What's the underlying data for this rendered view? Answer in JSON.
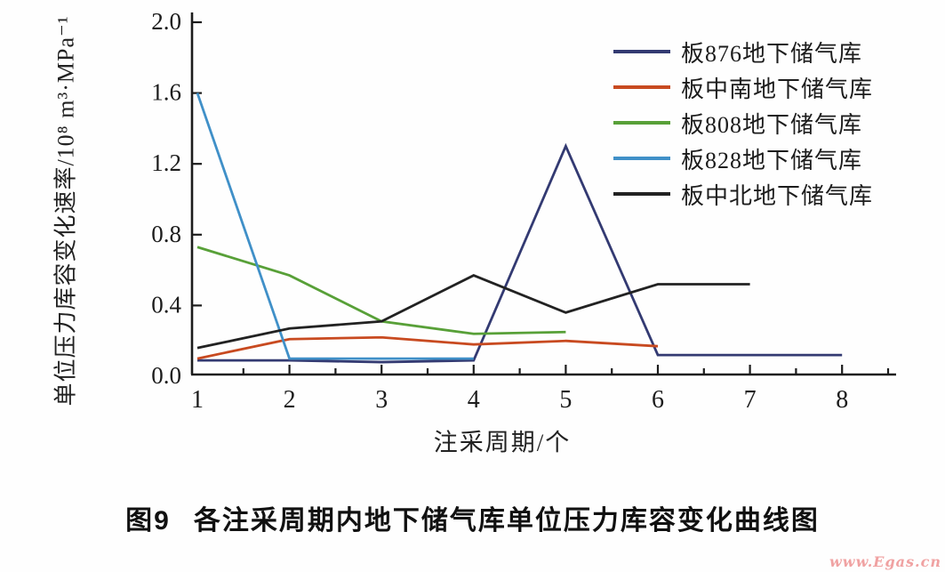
{
  "chart_data": {
    "type": "line",
    "title": "",
    "xlabel": "注采周期/个",
    "ylabel": "单位压力库容变化速率/10⁸ m³·MPa⁻¹",
    "xlim": [
      1,
      8
    ],
    "ylim": [
      0.0,
      2.0
    ],
    "x_ticks": [
      "1",
      "2",
      "3",
      "4",
      "5",
      "6",
      "7",
      "8"
    ],
    "y_ticks": [
      "0.0",
      "0.4",
      "0.8",
      "1.2",
      "1.6",
      "2.0"
    ],
    "y_tick_step": 0.4,
    "grid": false,
    "legend_position": "top-right",
    "series": [
      {
        "name": "板876地下储气库",
        "color": "#333a72",
        "x": [
          1,
          2,
          3,
          4,
          5,
          6,
          7,
          8
        ],
        "values": [
          0.09,
          0.09,
          0.08,
          0.09,
          1.3,
          0.12,
          0.12,
          0.12
        ]
      },
      {
        "name": "板中南地下储气库",
        "color": "#c84a20",
        "x": [
          1,
          2,
          3,
          4,
          5,
          6
        ],
        "values": [
          0.1,
          0.21,
          0.22,
          0.18,
          0.2,
          0.17
        ]
      },
      {
        "name": "板808地下储气库",
        "color": "#58a038",
        "x": [
          1,
          2,
          3,
          4,
          5
        ],
        "values": [
          0.73,
          0.57,
          0.31,
          0.24,
          0.25
        ]
      },
      {
        "name": "板828地下储气库",
        "color": "#4090c8",
        "x": [
          1,
          2,
          3,
          4
        ],
        "values": [
          1.6,
          0.1,
          0.1,
          0.1
        ]
      },
      {
        "name": "板中北地下储气库",
        "color": "#222222",
        "x": [
          1,
          2,
          3,
          4,
          5,
          6,
          7
        ],
        "values": [
          0.16,
          0.27,
          0.31,
          0.57,
          0.36,
          0.52,
          0.52
        ]
      }
    ]
  },
  "caption": {
    "fig_label": "图9",
    "title": "各注采周期内地下储气库单位压力库容变化曲线图"
  },
  "watermark": {
    "text": "www.Egas.cn",
    "color": "#f0a2a2"
  }
}
